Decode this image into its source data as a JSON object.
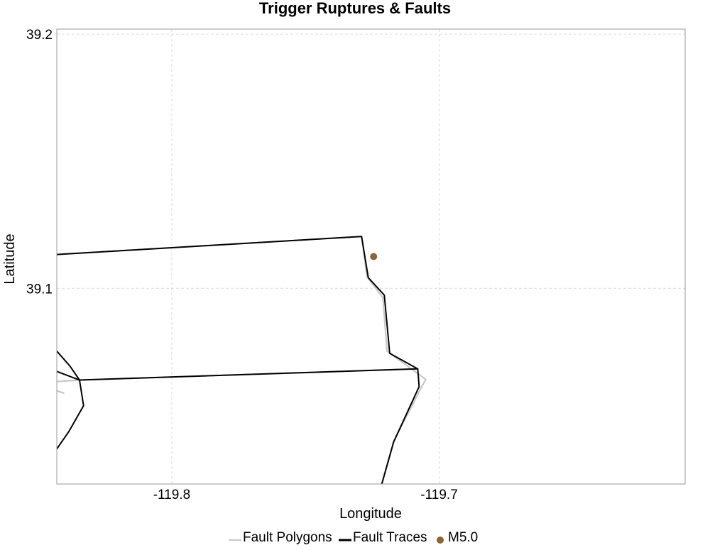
{
  "chart_data": {
    "type": "line",
    "title": "Trigger Ruptures & Faults",
    "xlabel": "Longitude",
    "ylabel": "Latitude",
    "xlim": [
      -119.843,
      -119.608
    ],
    "ylim": [
      39.023,
      39.202
    ],
    "x_ticks": [
      -119.8,
      -119.7
    ],
    "x_tick_labels": [
      "-119.8",
      "-119.7"
    ],
    "y_ticks": [
      39.1,
      39.2
    ],
    "y_tick_labels": [
      "39.1",
      "39.2"
    ],
    "grid": true,
    "legend_position": "bottom",
    "legend": [
      {
        "label": "Fault Polygons",
        "color": "#c8c8c8",
        "symbol": "line"
      },
      {
        "label": "Fault Traces",
        "color": "#000000",
        "symbol": "line"
      },
      {
        "label": "M5.0",
        "color": "#8b6532",
        "symbol": "dot"
      }
    ],
    "series": [
      {
        "name": "Fault Polygons",
        "color": "#c8c8c8",
        "lines": [
          [
            [
              -119.843,
              39.1133
            ],
            [
              -119.729,
              39.1204
            ],
            [
              -119.727,
              39.1045
            ],
            [
              -119.721,
              39.0963
            ],
            [
              -119.7195,
              39.0753
            ],
            [
              -119.7095,
              39.0676
            ],
            [
              -119.705,
              39.0642
            ],
            [
              -119.7075,
              39.0593
            ],
            [
              -119.717,
              39.0398
            ],
            [
              -119.722,
              39.021
            ]
          ],
          [
            [
              -119.843,
              39.0633
            ],
            [
              -119.8345,
              39.0639
            ],
            [
              -119.7085,
              39.0683
            ]
          ],
          [
            [
              -119.843,
              39.0597
            ],
            [
              -119.8405,
              39.0588
            ]
          ]
        ]
      },
      {
        "name": "Fault Traces",
        "color": "#000000",
        "lines": [
          [
            [
              -119.843,
              39.1133
            ],
            [
              -119.729,
              39.1204
            ],
            [
              -119.7265,
              39.1042
            ],
            [
              -119.7205,
              39.0973
            ],
            [
              -119.7185,
              39.0744
            ],
            [
              -119.708,
              39.0683
            ],
            [
              -119.7075,
              39.0613
            ],
            [
              -119.717,
              39.0396
            ],
            [
              -119.722,
              39.021
            ]
          ],
          [
            [
              -119.843,
              39.0673
            ],
            [
              -119.8345,
              39.0639
            ],
            [
              -119.7085,
              39.0683
            ]
          ],
          [
            [
              -119.843,
              39.0753
            ],
            [
              -119.838,
              39.0693
            ],
            [
              -119.8345,
              39.0639
            ],
            [
              -119.833,
              39.0538
            ],
            [
              -119.8385,
              39.0436
            ],
            [
              -119.843,
              39.0368
            ]
          ]
        ]
      }
    ],
    "points": [
      {
        "name": "M5.0",
        "x": -119.7245,
        "y": 39.1125,
        "color": "#8b6532"
      }
    ]
  }
}
